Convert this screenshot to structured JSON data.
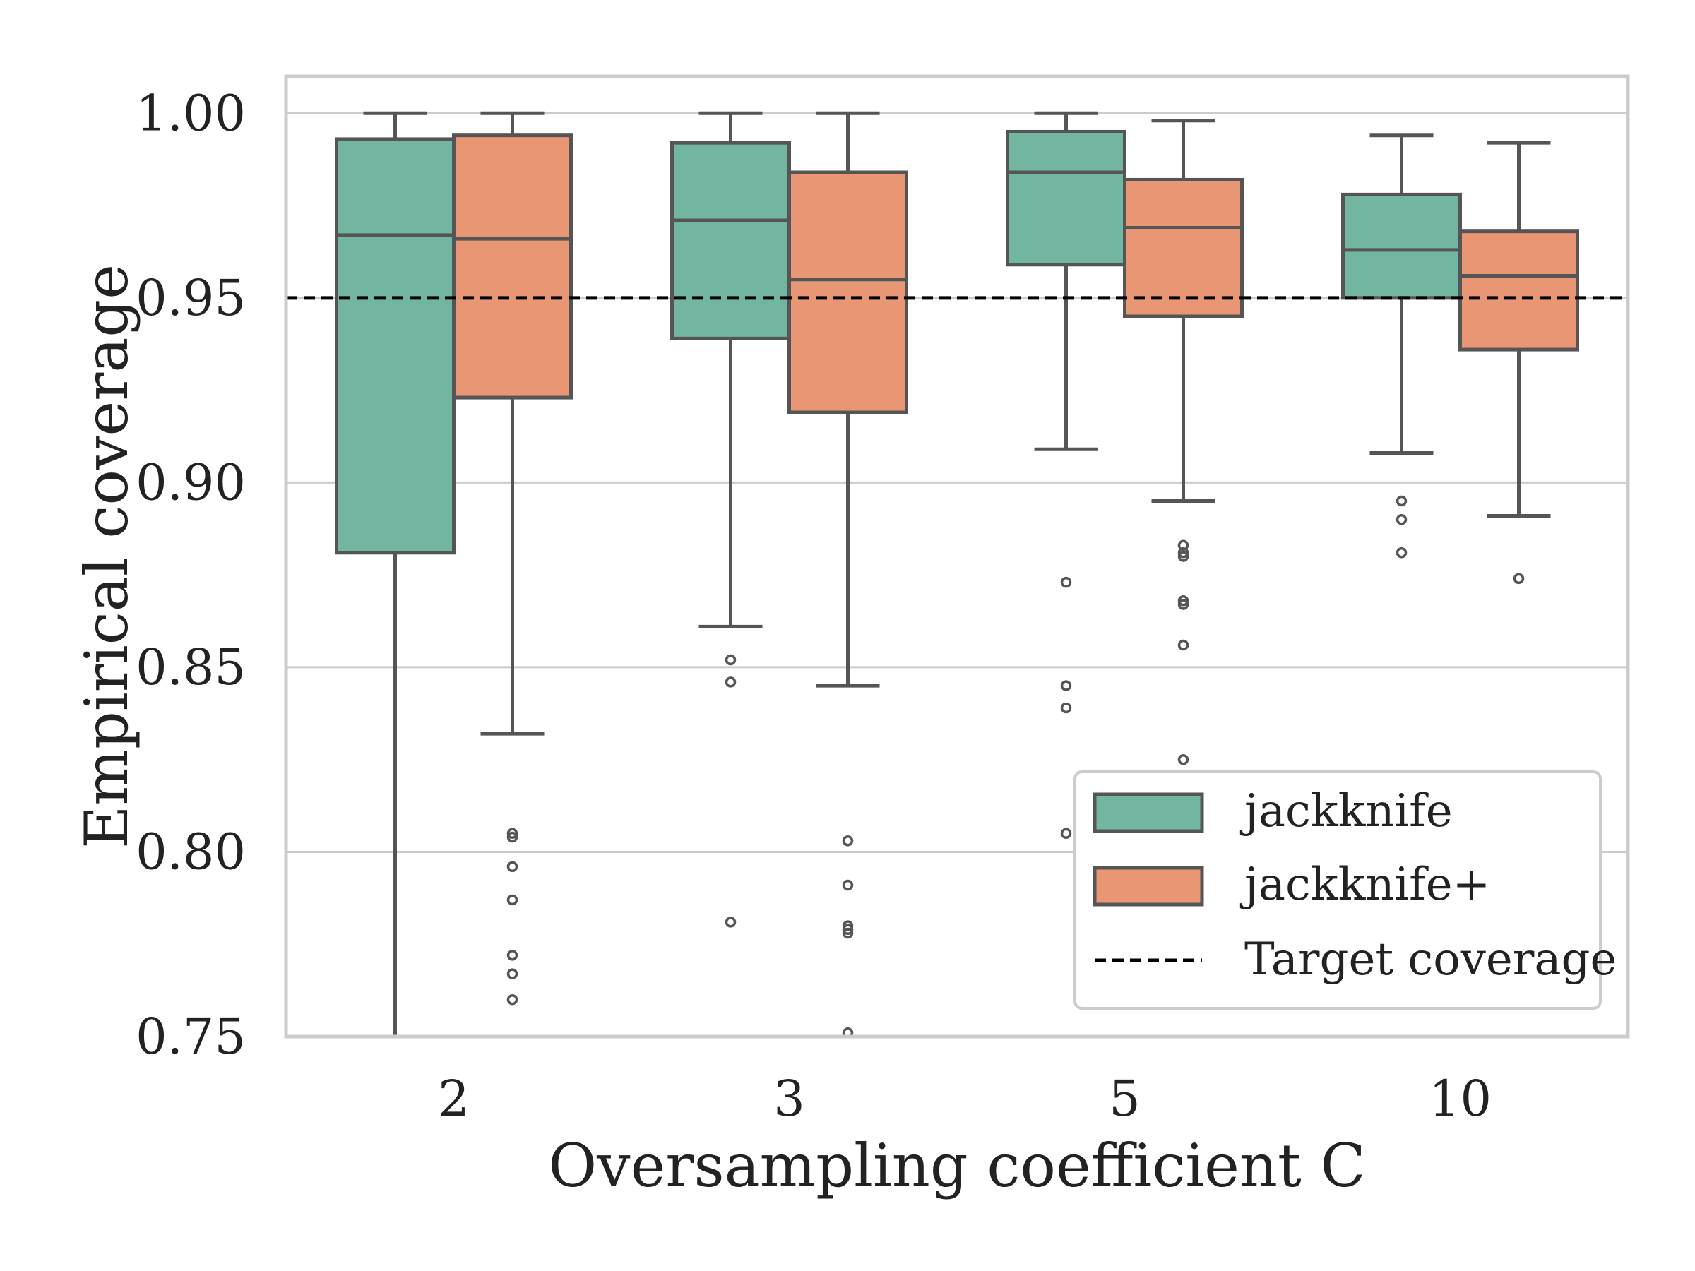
{
  "chart_data": {
    "type": "boxplot",
    "title": "",
    "xlabel": "Oversampling coefficient C",
    "ylabel": "Empirical coverage",
    "ylim": [
      0.75,
      1.01
    ],
    "yticks": [
      0.75,
      0.8,
      0.85,
      0.9,
      0.95,
      1.0
    ],
    "ytick_labels": [
      "0.75",
      "0.80",
      "0.85",
      "0.90",
      "0.95",
      "1.00"
    ],
    "categories": [
      "2",
      "3",
      "5",
      "10"
    ],
    "grid": "horizontal",
    "legend_position": "bottom-right",
    "target_coverage": 0.95,
    "target_label": "Target coverage",
    "colors": {
      "jackknife": "#72b6a1",
      "jackknife_plus": "#e99675",
      "line": "#555555",
      "grid": "#cccccc"
    },
    "series": [
      {
        "name": "jackknife",
        "boxes": [
          {
            "whisker_low": 0.75,
            "q1": 0.881,
            "median": 0.967,
            "q3": 0.993,
            "whisker_high": 1.0,
            "outliers": []
          },
          {
            "whisker_low": 0.861,
            "q1": 0.939,
            "median": 0.971,
            "q3": 0.992,
            "whisker_high": 1.0,
            "outliers": [
              0.852,
              0.846,
              0.781
            ]
          },
          {
            "whisker_low": 0.909,
            "q1": 0.959,
            "median": 0.984,
            "q3": 0.995,
            "whisker_high": 1.0,
            "outliers": [
              0.873,
              0.845,
              0.839,
              0.805
            ]
          },
          {
            "whisker_low": 0.908,
            "q1": 0.95,
            "median": 0.963,
            "q3": 0.978,
            "whisker_high": 0.994,
            "outliers": [
              0.895,
              0.89,
              0.881
            ]
          }
        ]
      },
      {
        "name": "jackknife+",
        "boxes": [
          {
            "whisker_low": 0.832,
            "q1": 0.923,
            "median": 0.966,
            "q3": 0.994,
            "whisker_high": 1.0,
            "outliers": [
              0.805,
              0.804,
              0.796,
              0.787,
              0.772,
              0.767,
              0.76
            ]
          },
          {
            "whisker_low": 0.845,
            "q1": 0.919,
            "median": 0.955,
            "q3": 0.984,
            "whisker_high": 1.0,
            "outliers": [
              0.803,
              0.791,
              0.78,
              0.779,
              0.778,
              0.751
            ]
          },
          {
            "whisker_low": 0.895,
            "q1": 0.945,
            "median": 0.969,
            "q3": 0.982,
            "whisker_high": 0.998,
            "outliers": [
              0.883,
              0.881,
              0.88,
              0.868,
              0.867,
              0.856,
              0.825
            ]
          },
          {
            "whisker_low": 0.891,
            "q1": 0.936,
            "median": 0.956,
            "q3": 0.968,
            "whisker_high": 0.992,
            "outliers": [
              0.874
            ]
          }
        ]
      }
    ]
  }
}
